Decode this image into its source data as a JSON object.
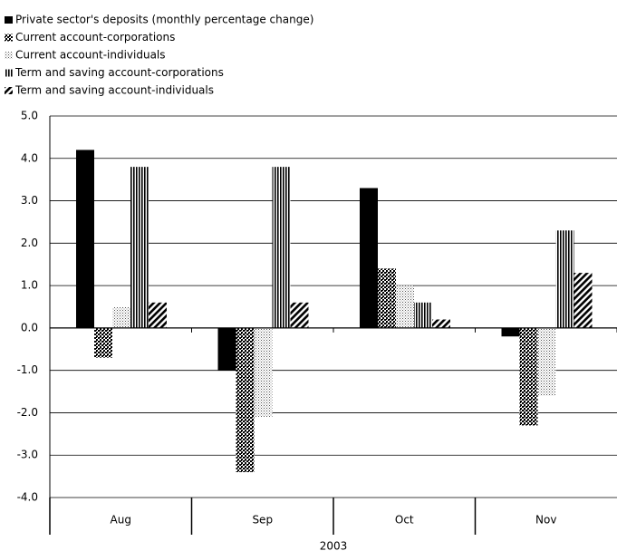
{
  "chart_data": {
    "type": "bar",
    "categories": [
      "Aug",
      "Sep",
      "Oct",
      "Nov"
    ],
    "group_label": "2003",
    "series": [
      {
        "name": "Private sector's deposits (monthly percentage change)",
        "color": "#000000",
        "pattern": "solid",
        "values": [
          4.2,
          -1.0,
          3.3,
          -0.2
        ]
      },
      {
        "name": "Current account-corporations",
        "color": "#000000",
        "pattern": "checker",
        "values": [
          -0.7,
          -3.4,
          1.4,
          -2.3
        ]
      },
      {
        "name": "Current account-individuals",
        "color": "#000000",
        "pattern": "dots",
        "values": [
          0.5,
          -2.1,
          1.0,
          -1.6
        ]
      },
      {
        "name": "Term and saving account-corporations",
        "color": "#000000",
        "pattern": "vertical",
        "values": [
          3.8,
          3.8,
          0.6,
          2.3
        ]
      },
      {
        "name": "Term and saving account-individuals",
        "color": "#000000",
        "pattern": "diagonal",
        "values": [
          0.6,
          0.6,
          0.2,
          1.3
        ]
      }
    ],
    "ylim": [
      -4,
      5
    ],
    "yticks": [
      {
        "value": -4,
        "label": "-4.0"
      },
      {
        "value": -3,
        "label": "-3.0"
      },
      {
        "value": -2,
        "label": "-2.0"
      },
      {
        "value": -1,
        "label": "-1.0"
      },
      {
        "value": 0,
        "label": "0.0"
      },
      {
        "value": 1,
        "label": "1.0"
      },
      {
        "value": 2,
        "label": "2.0"
      },
      {
        "value": 3,
        "label": "3.0"
      },
      {
        "value": 4,
        "label": "4.0"
      },
      {
        "value": 5,
        "label": "5.0"
      }
    ],
    "grid": true
  }
}
